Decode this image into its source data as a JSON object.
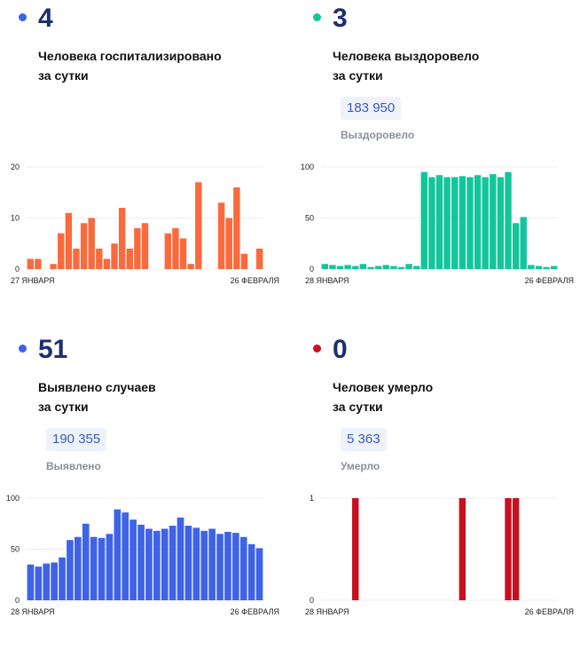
{
  "panels": [
    {
      "number": "4",
      "label_line1": "Человека госпитализировано",
      "label_line2": "за сутки",
      "dot_color": "#3f63e6",
      "total": "",
      "total_label": ""
    },
    {
      "number": "3",
      "label_line1": "Человека выздоровело",
      "label_line2": "за сутки",
      "dot_color": "#14c59c",
      "total": "183 950",
      "total_label": "Выздоровело"
    },
    {
      "number": "51",
      "label_line1": "Выявлено случаев",
      "label_line2": "за сутки",
      "dot_color": "#3f63e6",
      "total": "190 355",
      "total_label": "Выявлено"
    },
    {
      "number": "0",
      "label_line1": "Человек умерло",
      "label_line2": "за сутки",
      "dot_color": "#c8101e",
      "total": "5 363",
      "total_label": "Умерло"
    }
  ],
  "chart_data": [
    {
      "type": "bar",
      "color": "#fa6a3c",
      "x_start_label": "27 ЯНВАРЯ",
      "x_end_label": "26 ФЕВРАЛЯ",
      "ylim": [
        0,
        20
      ],
      "yticks": [
        0,
        10,
        20
      ],
      "values": [
        2,
        2,
        0,
        1,
        7,
        11,
        4,
        9,
        10,
        4,
        2,
        5,
        12,
        4,
        8,
        9,
        0,
        0,
        7,
        8,
        6,
        1,
        17,
        0,
        0,
        13,
        10,
        16,
        3,
        0,
        4
      ]
    },
    {
      "type": "bar",
      "color": "#14c59c",
      "x_start_label": "28 ЯНВАРЯ",
      "x_end_label": "26 ФЕВРАЛЯ",
      "ylim": [
        0,
        100
      ],
      "yticks": [
        0,
        50,
        100
      ],
      "values": [
        5,
        4,
        3,
        4,
        3,
        5,
        2,
        3,
        4,
        3,
        2,
        5,
        3,
        95,
        90,
        92,
        90,
        90,
        91,
        90,
        92,
        90,
        93,
        90,
        95,
        45,
        51,
        4,
        3,
        2,
        3
      ]
    },
    {
      "type": "bar",
      "color": "#3f63e6",
      "x_start_label": "28 ЯНВАРЯ",
      "x_end_label": "26 ФЕВРАЛЯ",
      "ylim": [
        0,
        100
      ],
      "yticks": [
        0,
        50,
        100
      ],
      "values": [
        35,
        33,
        36,
        37,
        42,
        59,
        62,
        75,
        62,
        61,
        65,
        89,
        86,
        79,
        74,
        70,
        68,
        70,
        73,
        81,
        73,
        71,
        68,
        70,
        65,
        67,
        66,
        62,
        55,
        51
      ]
    },
    {
      "type": "bar",
      "color": "#c8101e",
      "x_start_label": "28 ЯНВАРЯ",
      "x_end_label": "26 ФЕВРАЛЯ",
      "ylim": [
        0,
        1
      ],
      "yticks": [
        0,
        1
      ],
      "values": [
        0,
        0,
        0,
        0,
        1,
        0,
        0,
        0,
        0,
        0,
        0,
        0,
        0,
        0,
        0,
        0,
        0,
        0,
        1,
        0,
        0,
        0,
        0,
        0,
        1,
        1,
        0,
        0,
        0,
        0,
        0
      ]
    }
  ]
}
